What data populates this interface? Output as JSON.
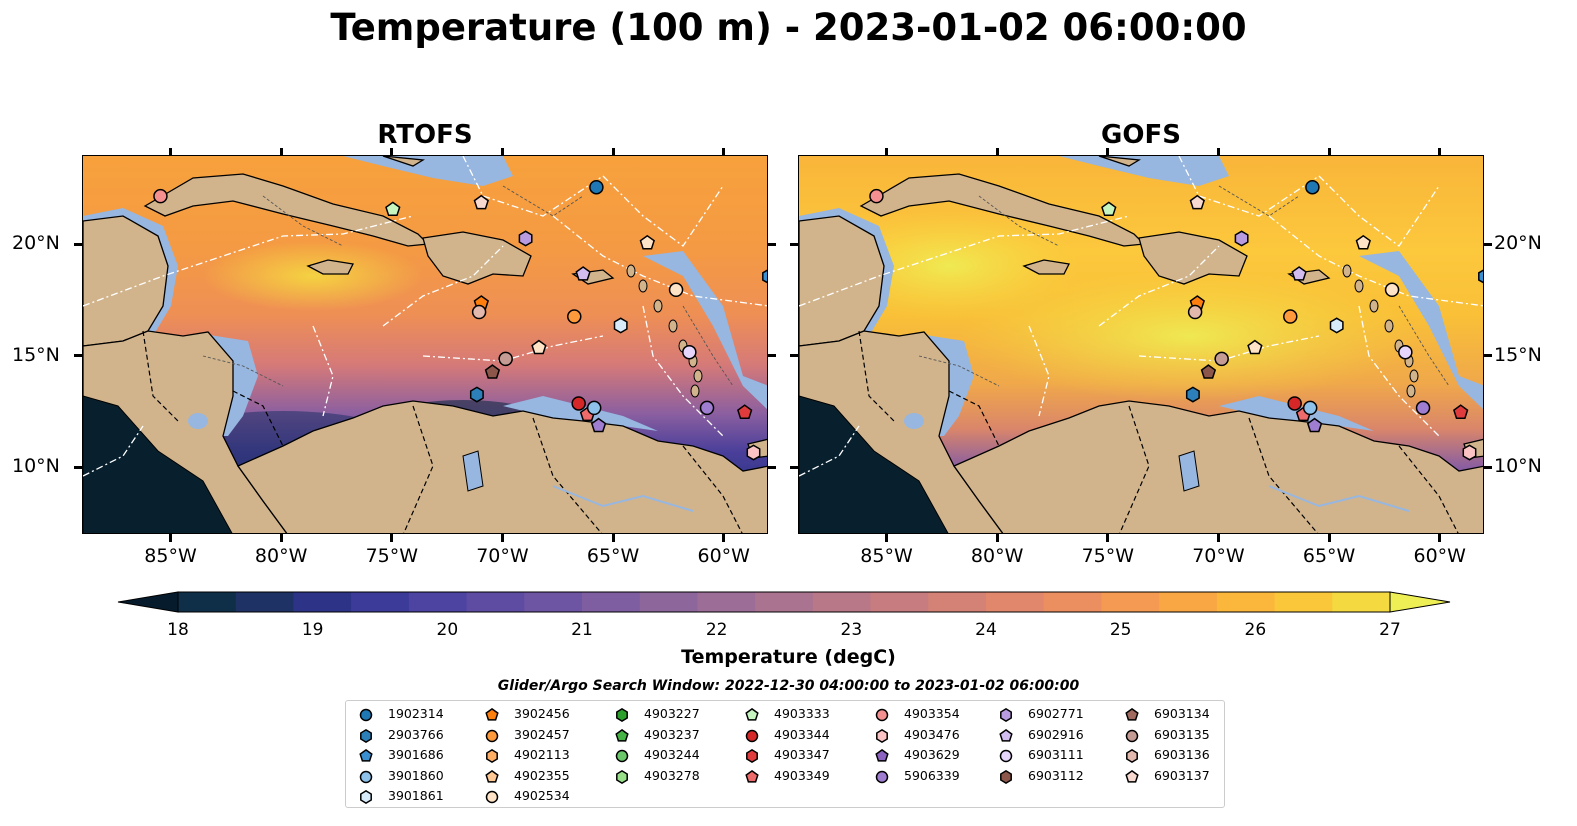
{
  "title": "Temperature (100 m) - 2023-01-02 06:00:00",
  "panels": [
    {
      "title": "RTOFS",
      "variant": "rtofs"
    },
    {
      "title": "GOFS",
      "variant": "gofs"
    }
  ],
  "axes": {
    "lon_range": [
      -89,
      -58
    ],
    "lat_range": [
      7,
      24
    ],
    "lon_ticks": [
      "85°W",
      "80°W",
      "75°W",
      "70°W",
      "65°W",
      "60°W"
    ],
    "lat_ticks": [
      "20°N",
      "15°N",
      "10°N"
    ]
  },
  "colorbar": {
    "label": "Temperature (degC)",
    "ticks": [
      "18",
      "19",
      "20",
      "21",
      "22",
      "23",
      "24",
      "25",
      "26",
      "27"
    ],
    "range": [
      18,
      27
    ],
    "extend": "both",
    "colors": [
      "#061c2c",
      "#0f2e48",
      "#1e3265",
      "#2d3488",
      "#3c3b9a",
      "#4d44a1",
      "#5e4ca3",
      "#6e55a3",
      "#7e5ea0",
      "#8d669c",
      "#9b6d97",
      "#aa7390",
      "#b97888",
      "#c77c7f",
      "#d58276",
      "#e1886c",
      "#ec8f60",
      "#f49a52",
      "#f9a745",
      "#fbb63c",
      "#fac73a",
      "#f5d940",
      "#eeee55"
    ]
  },
  "search_window": "Glider/Argo Search Window: 2022-12-30 04:00:00 to 2023-01-02 06:00:00",
  "legend": [
    [
      {
        "id": "1902314",
        "marker": "circle",
        "color": "#1f77b4"
      },
      {
        "id": "2903766",
        "marker": "hexagon",
        "color": "#2c7fb8"
      },
      {
        "id": "3901686",
        "marker": "pentagon",
        "color": "#3a8fd0"
      },
      {
        "id": "3901860",
        "marker": "circle",
        "color": "#8ec2ea"
      },
      {
        "id": "3901861",
        "marker": "hexagon",
        "color": "#d7ebfb"
      }
    ],
    [
      {
        "id": "3902456",
        "marker": "pentagon",
        "color": "#ff7f0e"
      },
      {
        "id": "3902457",
        "marker": "circle",
        "color": "#ff9a3c"
      },
      {
        "id": "4902113",
        "marker": "hexagon",
        "color": "#ffae66"
      },
      {
        "id": "4902355",
        "marker": "pentagon",
        "color": "#ffc894"
      },
      {
        "id": "4902534",
        "marker": "circle",
        "color": "#ffe3c6"
      }
    ],
    [
      {
        "id": "4903227",
        "marker": "hexagon",
        "color": "#2ca02c"
      },
      {
        "id": "4903237",
        "marker": "pentagon",
        "color": "#45b445"
      },
      {
        "id": "4903244",
        "marker": "circle",
        "color": "#6ac86a"
      },
      {
        "id": "4903278",
        "marker": "hexagon",
        "color": "#98df8a"
      }
    ],
    [
      {
        "id": "4903333",
        "marker": "pentagon",
        "color": "#c7f5c0"
      },
      {
        "id": "4903344",
        "marker": "circle",
        "color": "#d62728"
      },
      {
        "id": "4903347",
        "marker": "hexagon",
        "color": "#e03c3d"
      },
      {
        "id": "4903349",
        "marker": "pentagon",
        "color": "#ee6b6b"
      }
    ],
    [
      {
        "id": "4903354",
        "marker": "circle",
        "color": "#f4908f"
      },
      {
        "id": "4903476",
        "marker": "hexagon",
        "color": "#fbc3c3"
      },
      {
        "id": "4903629",
        "marker": "pentagon",
        "color": "#8c62c0"
      },
      {
        "id": "5906339",
        "marker": "circle",
        "color": "#9f7dd0"
      }
    ],
    [
      {
        "id": "6902771",
        "marker": "hexagon",
        "color": "#b99be0"
      },
      {
        "id": "6902916",
        "marker": "pentagon",
        "color": "#d3bdf0"
      },
      {
        "id": "6903111",
        "marker": "circle",
        "color": "#e6d6fb"
      },
      {
        "id": "6903112",
        "marker": "hexagon",
        "color": "#8c564b"
      }
    ],
    [
      {
        "id": "6903134",
        "marker": "pentagon",
        "color": "#a06a5e"
      },
      {
        "id": "6903135",
        "marker": "circle",
        "color": "#c49c94"
      },
      {
        "id": "6903136",
        "marker": "hexagon",
        "color": "#e3b8ad"
      },
      {
        "id": "6903137",
        "marker": "pentagon",
        "color": "#f7d9d0"
      }
    ]
  ],
  "stations": [
    {
      "lon": -85.5,
      "lat": 22.2,
      "color": "#f4908f",
      "marker": "circle"
    },
    {
      "lon": -65.8,
      "lat": 22.6,
      "color": "#1f77b4",
      "marker": "circle"
    },
    {
      "lon": -75.0,
      "lat": 21.6,
      "color": "#c7f5c0",
      "marker": "pentagon"
    },
    {
      "lon": -71.0,
      "lat": 21.9,
      "color": "#f7d9d0",
      "marker": "pentagon"
    },
    {
      "lon": -69.0,
      "lat": 20.3,
      "color": "#b99be0",
      "marker": "hexagon"
    },
    {
      "lon": -63.5,
      "lat": 20.1,
      "color": "#ffe3c6",
      "marker": "pentagon"
    },
    {
      "lon": -66.4,
      "lat": 18.7,
      "color": "#d3bdf0",
      "marker": "pentagon"
    },
    {
      "lon": -62.2,
      "lat": 18.0,
      "color": "#ffe3c6",
      "marker": "circle"
    },
    {
      "lon": -71.0,
      "lat": 17.4,
      "color": "#ff7f0e",
      "marker": "pentagon"
    },
    {
      "lon": -71.1,
      "lat": 17.0,
      "color": "#e3b8ad",
      "marker": "circle"
    },
    {
      "lon": -66.8,
      "lat": 16.8,
      "color": "#ff9a3c",
      "marker": "circle"
    },
    {
      "lon": -64.7,
      "lat": 16.4,
      "color": "#d7ebfb",
      "marker": "hexagon"
    },
    {
      "lon": -68.4,
      "lat": 15.4,
      "color": "#ffe3c6",
      "marker": "pentagon"
    },
    {
      "lon": -69.9,
      "lat": 14.9,
      "color": "#c49c94",
      "marker": "circle"
    },
    {
      "lon": -61.6,
      "lat": 15.2,
      "color": "#e6d6fb",
      "marker": "circle"
    },
    {
      "lon": -70.5,
      "lat": 14.3,
      "color": "#8c564b",
      "marker": "pentagon"
    },
    {
      "lon": -71.2,
      "lat": 13.3,
      "color": "#2c7fb8",
      "marker": "hexagon"
    },
    {
      "lon": -66.6,
      "lat": 12.9,
      "color": "#d62728",
      "marker": "circle"
    },
    {
      "lon": -66.2,
      "lat": 12.4,
      "color": "#ee6b6b",
      "marker": "pentagon"
    },
    {
      "lon": -65.9,
      "lat": 12.7,
      "color": "#8ec2ea",
      "marker": "circle"
    },
    {
      "lon": -65.7,
      "lat": 11.9,
      "color": "#9f7dd0",
      "marker": "pentagon"
    },
    {
      "lon": -60.8,
      "lat": 12.7,
      "color": "#9f7dd0",
      "marker": "circle"
    },
    {
      "lon": -59.1,
      "lat": 12.5,
      "color": "#e03c3d",
      "marker": "pentagon"
    },
    {
      "lon": -58.7,
      "lat": 10.7,
      "color": "#fbc3c3",
      "marker": "hexagon"
    },
    {
      "lon": -58.0,
      "lat": 18.6,
      "color": "#3a8fd0",
      "marker": "hexagon"
    }
  ]
}
